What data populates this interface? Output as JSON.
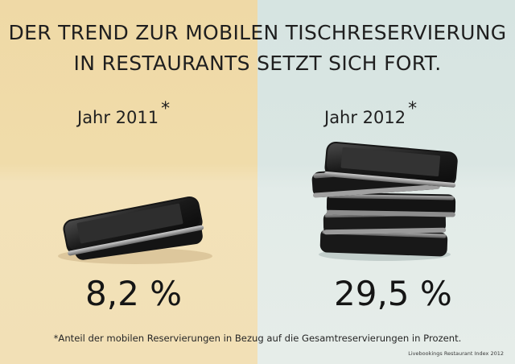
{
  "title": {
    "line1": "DER TREND ZUR MOBILEN TISCHRESERVIERUNG",
    "line2": "IN RESTAURANTS SETZT SICH FORT."
  },
  "chart_data": {
    "type": "table",
    "categories": [
      "Jahr 2011",
      "Jahr 2012"
    ],
    "values": [
      8.2,
      29.5
    ],
    "value_labels": [
      "8,2 %",
      "29,5 %"
    ],
    "unit": "%",
    "marker": "*",
    "footnote": "*Anteil der mobilen Reservierungen in Bezug auf die Gesamtreservierungen in Prozent.",
    "source": "Livebookings Restaurant Index 2012"
  },
  "colors": {
    "left_background": "#efd9a6",
    "right_background": "#d6e4e1",
    "text": "#1f1f1f"
  }
}
